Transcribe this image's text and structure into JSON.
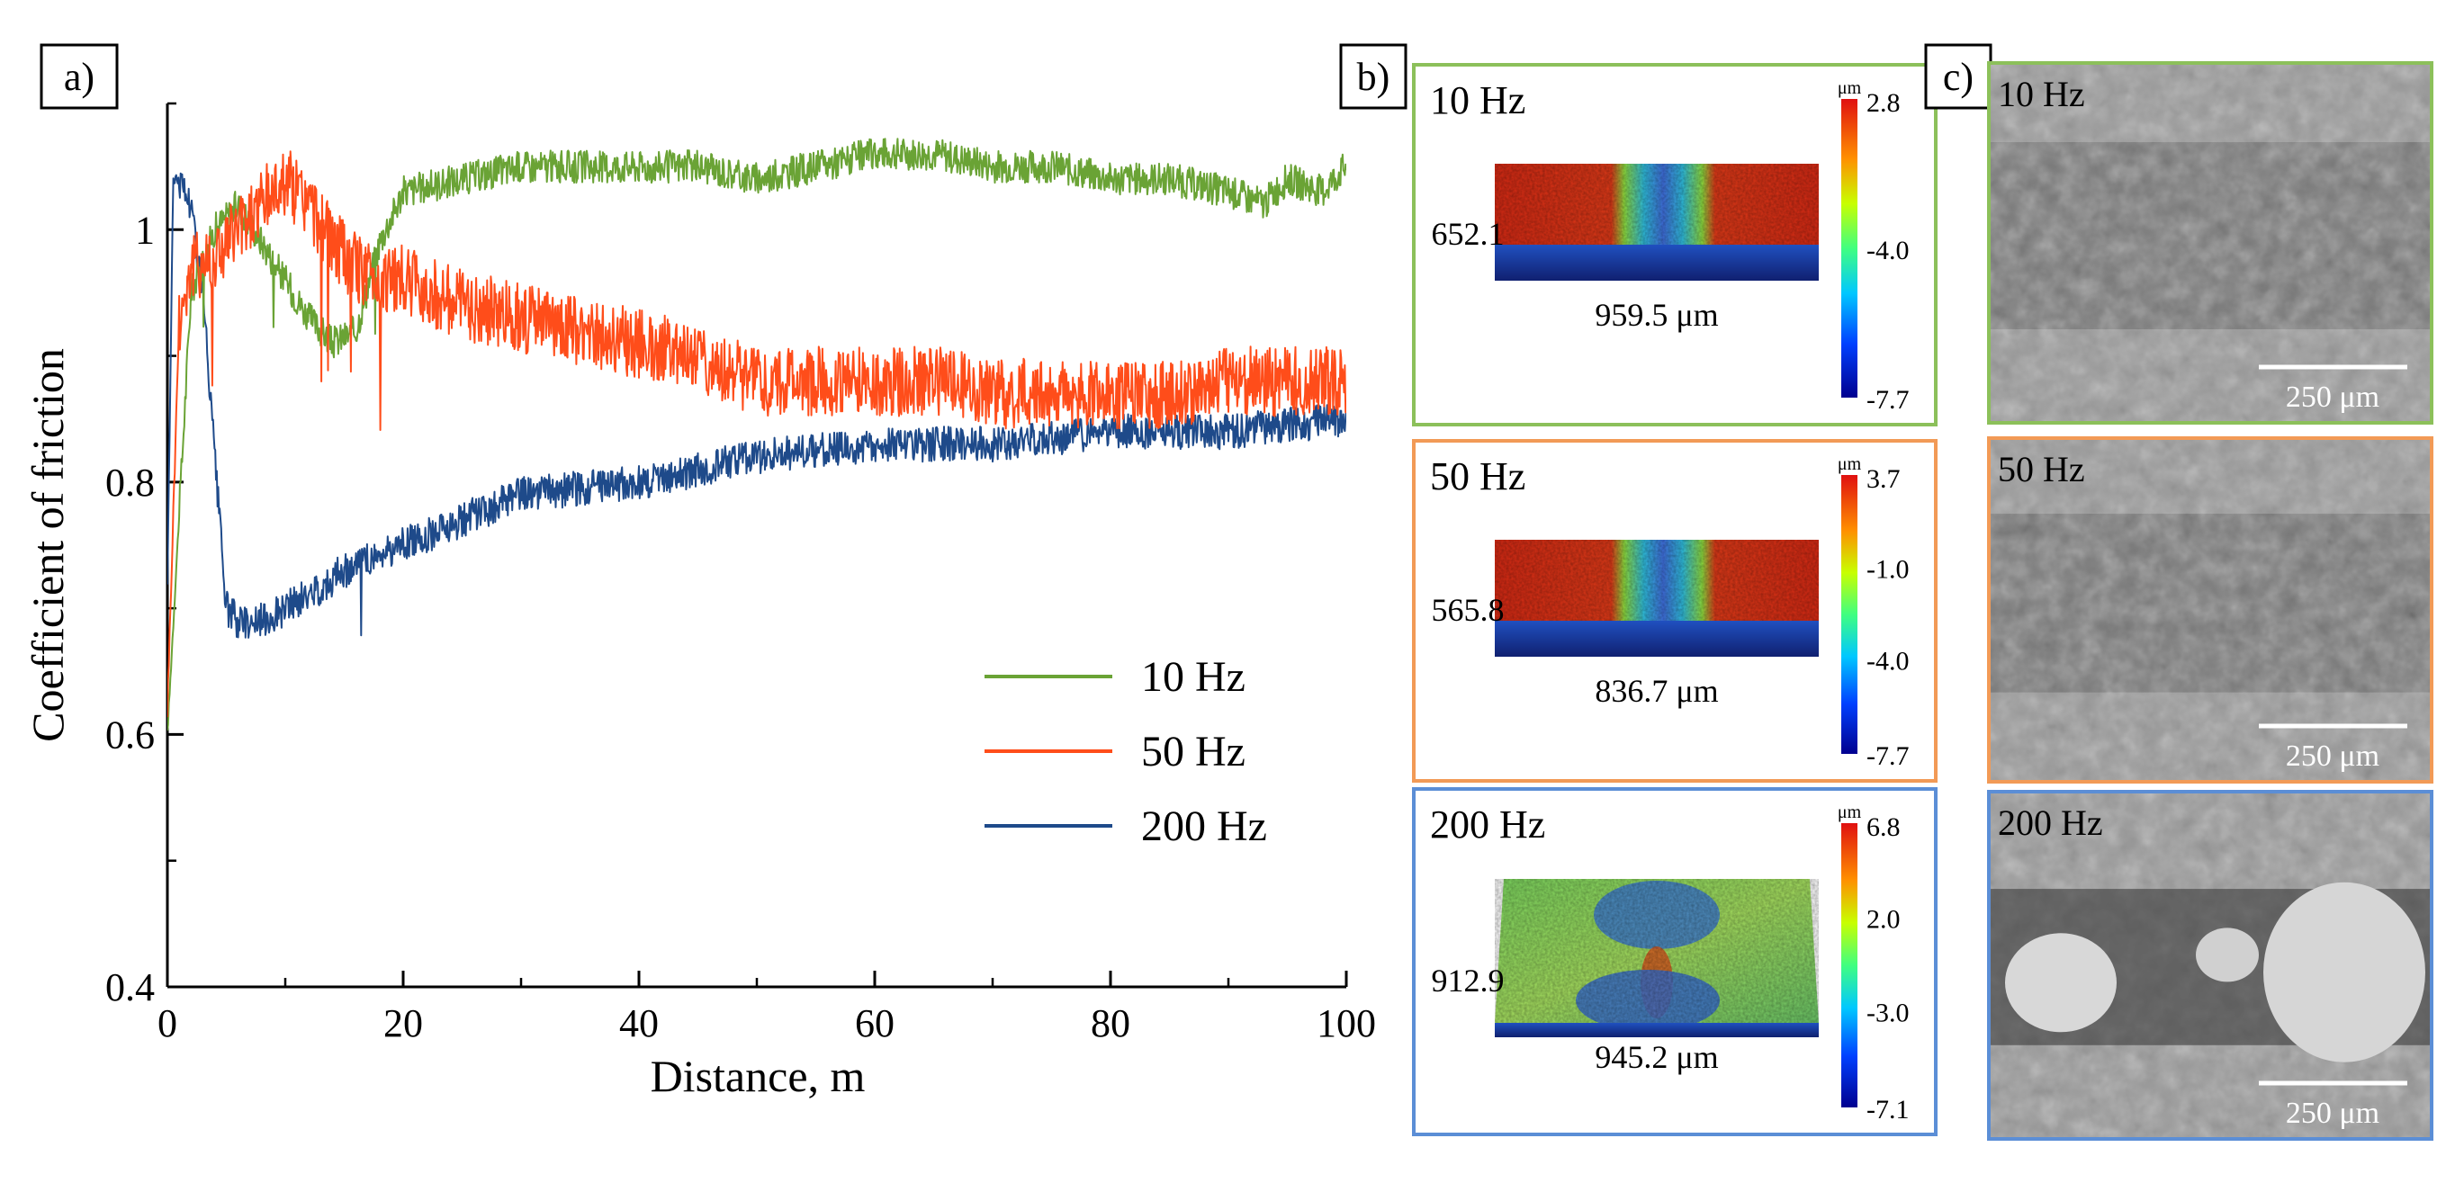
{
  "panels": {
    "a_label": "a)",
    "b_label": "b)",
    "c_label": "c)"
  },
  "chart_data": {
    "type": "line",
    "xlabel": "Distance, m",
    "ylabel": "Coefficient of friction",
    "xlim": [
      0,
      100
    ],
    "ylim": [
      0.4,
      1.1
    ],
    "xticks": [
      0,
      20,
      40,
      60,
      80,
      100
    ],
    "yticks": [
      0.4,
      0.6,
      0.8,
      1.0
    ],
    "xtick_labels": [
      "0",
      "20",
      "40",
      "60",
      "80",
      "100"
    ],
    "ytick_labels": [
      "0.4",
      "0.6",
      "0.8",
      "1"
    ],
    "legend_position": "center-right",
    "series": [
      {
        "name": "10 Hz",
        "color": "#6aa335",
        "x": [
          0,
          2,
          4,
          6,
          8,
          10,
          12,
          14,
          16,
          18,
          20,
          25,
          30,
          35,
          40,
          45,
          50,
          55,
          60,
          62,
          65,
          70,
          75,
          80,
          85,
          90,
          93,
          95,
          98,
          100
        ],
        "values": [
          0.6,
          0.95,
          1.0,
          1.02,
          0.99,
          0.96,
          0.93,
          0.91,
          0.92,
          0.99,
          1.03,
          1.04,
          1.05,
          1.05,
          1.05,
          1.05,
          1.04,
          1.05,
          1.06,
          1.06,
          1.06,
          1.05,
          1.05,
          1.04,
          1.04,
          1.03,
          1.02,
          1.04,
          1.03,
          1.05
        ],
        "noise": 0.013
      },
      {
        "name": "50 Hz",
        "color": "#ff4d1a",
        "x": [
          0,
          1,
          2,
          4,
          6,
          8,
          10,
          12,
          14,
          16,
          18,
          20,
          25,
          30,
          35,
          40,
          45,
          50,
          55,
          60,
          65,
          70,
          75,
          80,
          85,
          90,
          95,
          100
        ],
        "values": [
          0.62,
          0.93,
          0.97,
          0.98,
          1.0,
          1.02,
          1.04,
          1.02,
          0.99,
          0.97,
          0.96,
          0.96,
          0.94,
          0.93,
          0.92,
          0.91,
          0.9,
          0.88,
          0.88,
          0.88,
          0.88,
          0.87,
          0.87,
          0.87,
          0.87,
          0.88,
          0.88,
          0.88
        ],
        "noise": 0.028
      },
      {
        "name": "200 Hz",
        "color": "#1e4a8a",
        "x": [
          0,
          0.5,
          1,
          2,
          3,
          4,
          5,
          6,
          8,
          10,
          12,
          15,
          20,
          25,
          30,
          40,
          50,
          60,
          70,
          80,
          90,
          100
        ],
        "values": [
          0.72,
          1.04,
          1.04,
          1.02,
          0.95,
          0.82,
          0.7,
          0.69,
          0.69,
          0.7,
          0.71,
          0.73,
          0.75,
          0.77,
          0.79,
          0.8,
          0.82,
          0.83,
          0.83,
          0.84,
          0.84,
          0.85
        ],
        "noise": 0.014
      }
    ]
  },
  "profiles": [
    {
      "freq": "10 Hz",
      "border": "#8cc05a",
      "depth_label": "652.1",
      "width_label": "959.5 μm",
      "unit": "μm",
      "scale_max": "2.8",
      "scale_mid": "-4.0",
      "scale_min": "-7.7",
      "pattern": "groove"
    },
    {
      "freq": "50 Hz",
      "border": "#f29a56",
      "depth_label": "565.8",
      "width_label": "836.7 μm",
      "unit": "μm",
      "scale_max": "3.7",
      "scale_mid1": "-1.0",
      "scale_mid2": "-4.0",
      "scale_min": "-7.7",
      "pattern": "groove"
    },
    {
      "freq": "200 Hz",
      "border": "#5b8ed6",
      "depth_label": "912.9",
      "width_label": "945.2 μm",
      "unit": "μm",
      "scale_max": "6.8",
      "scale_mid1": "2.0",
      "scale_mid2": "-3.0",
      "scale_min": "-7.1",
      "pattern": "flat"
    }
  ],
  "micrographs": [
    {
      "freq": "10 Hz",
      "border": "#8cc05a",
      "scalebar": "250 μm"
    },
    {
      "freq": "50 Hz",
      "border": "#f29a56",
      "scalebar": "250 μm"
    },
    {
      "freq": "200 Hz",
      "border": "#5b8ed6",
      "scalebar": "250 μm"
    }
  ]
}
